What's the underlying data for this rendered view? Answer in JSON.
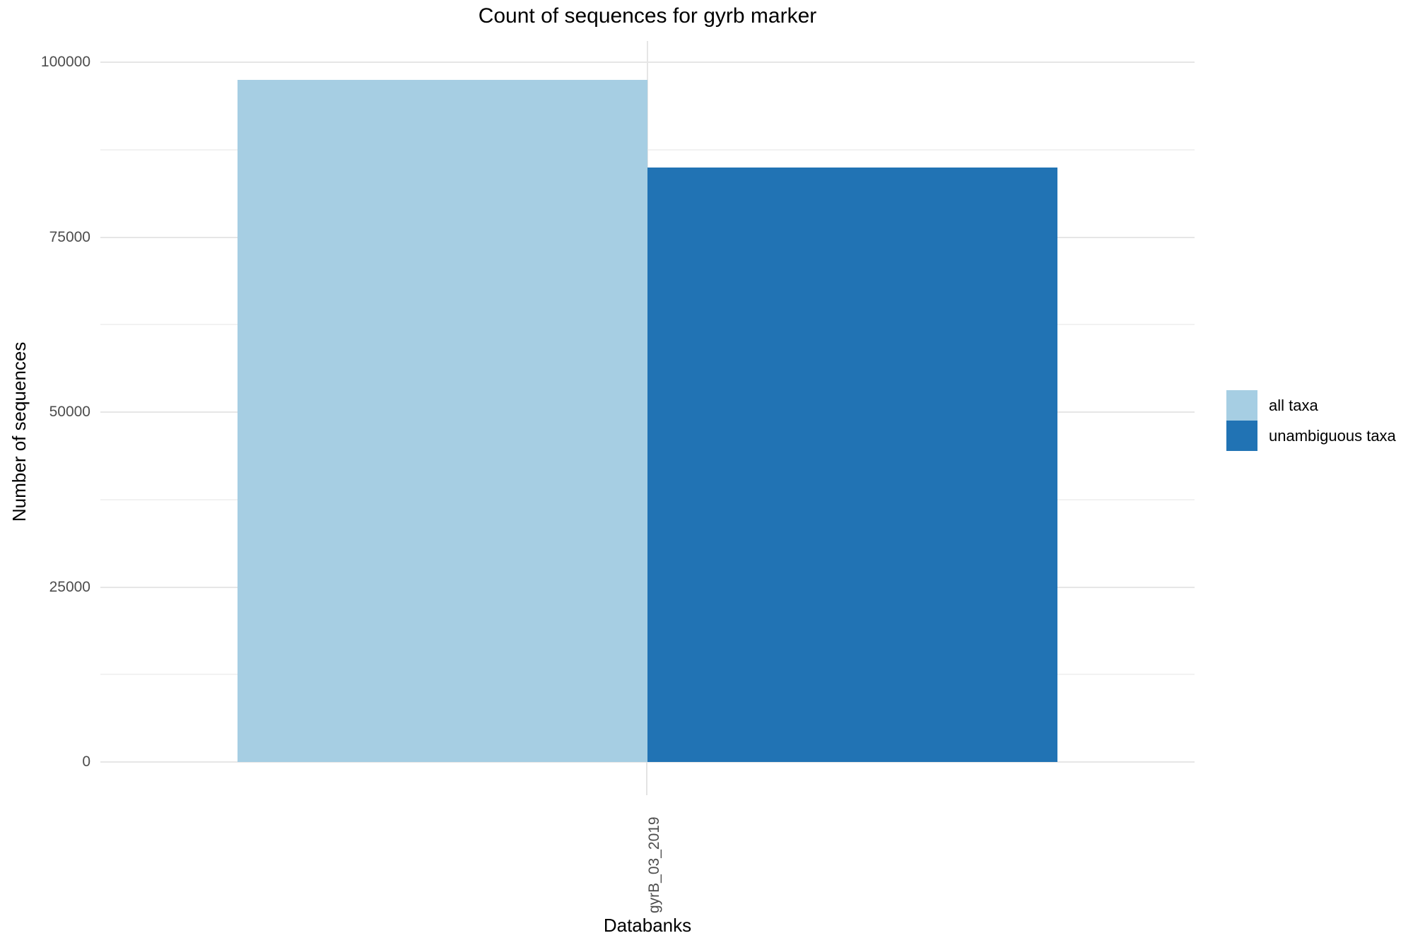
{
  "chart_data": {
    "type": "bar",
    "title": "Count of sequences for gyrb marker",
    "xlabel": "Databanks",
    "ylabel": "Number of sequences",
    "categories": [
      "gyrB_03_2019"
    ],
    "series": [
      {
        "name": "all taxa",
        "color": "#A6CEE3",
        "values": [
          97500
        ]
      },
      {
        "name": "unambiguous taxa",
        "color": "#2173B4",
        "values": [
          85000
        ]
      }
    ],
    "ylim": [
      0,
      103000
    ],
    "yticks": [
      0,
      25000,
      50000,
      75000,
      100000
    ],
    "ytick_labels": [
      "0",
      "25000",
      "50000",
      "75000",
      "100000"
    ],
    "yticks_minor": [
      12500,
      37500,
      62500,
      87500
    ],
    "grid": "horizontal major+minor, vertical at category center",
    "legend_position": "right",
    "bar_layout": "dodged, touching"
  },
  "style": {
    "grid_major_color": "#e6e6e6",
    "grid_minor_color": "#f2f2f2",
    "tick_text_color": "#4d4d4d",
    "text_color": "#000000",
    "background": "#ffffff"
  }
}
